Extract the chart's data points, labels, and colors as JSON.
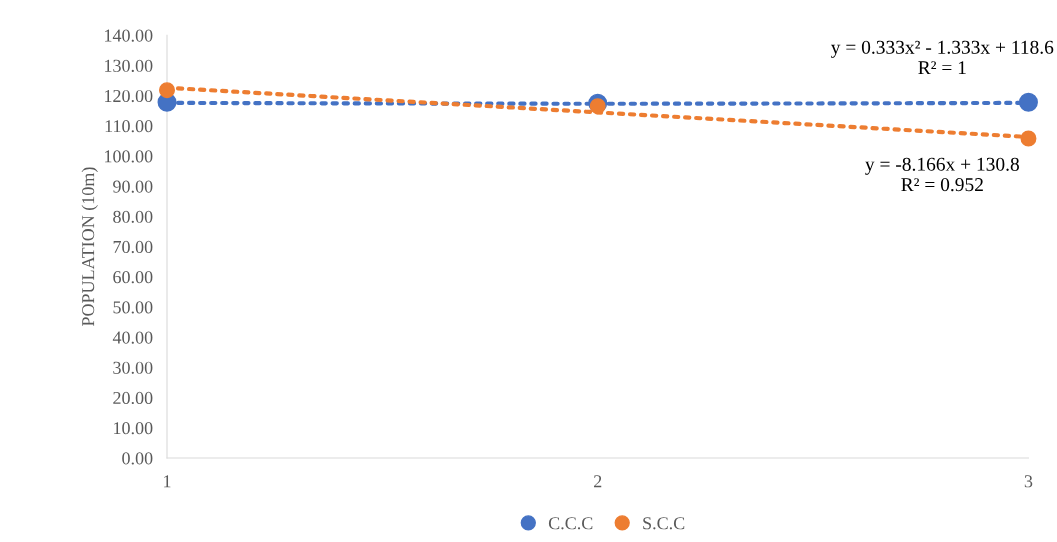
{
  "chart_data": {
    "type": "scatter",
    "ylabel": "POPULATION (10m)",
    "xlim": [
      1,
      3
    ],
    "xticks": [
      1,
      2,
      3
    ],
    "ylim": [
      0,
      140
    ],
    "yticks": [
      {
        "value": 0,
        "label": "0.00"
      },
      {
        "value": 10,
        "label": "10.00"
      },
      {
        "value": 20,
        "label": "20.00"
      },
      {
        "value": 30,
        "label": "30.00"
      },
      {
        "value": 40,
        "label": "40.00"
      },
      {
        "value": 50,
        "label": "50.00"
      },
      {
        "value": 60,
        "label": "60.00"
      },
      {
        "value": 70,
        "label": "70.00"
      },
      {
        "value": 80,
        "label": "80.00"
      },
      {
        "value": 90,
        "label": "90.00"
      },
      {
        "value": 100,
        "label": "100.00"
      },
      {
        "value": 110,
        "label": "110.00"
      },
      {
        "value": 120,
        "label": "120.00"
      },
      {
        "value": 130,
        "label": "130.00"
      },
      {
        "value": 140,
        "label": "140.00"
      }
    ],
    "series": [
      {
        "name": "C.C.C",
        "color": "#4472c4",
        "x": [
          1,
          2,
          3
        ],
        "values": [
          117.8,
          117.5,
          117.8
        ],
        "marker": "circle"
      },
      {
        "name": "S.C.C",
        "color": "#ed7d31",
        "x": [
          1,
          2,
          3
        ],
        "values": [
          121.8,
          116.5,
          105.8
        ],
        "marker": "circle"
      },
      {
        "type": "line",
        "color": "#4472c4",
        "x": [
          1,
          1.5,
          2,
          2.5,
          3
        ],
        "values": [
          117.6,
          117.4,
          117.3,
          117.4,
          117.6
        ],
        "line_style": "dotted",
        "marker": "none"
      },
      {
        "type": "line",
        "color": "#ed7d31",
        "x": [
          1,
          3
        ],
        "values": [
          122.6,
          106.3
        ],
        "line_style": "dotted",
        "marker": "none"
      }
    ],
    "annotations": [
      {
        "text": "y = 0.333x² - 1.333x + 118.6\nR² = 1",
        "x": 2.8,
        "y": 117.5
      },
      {
        "text": "y = -8.166x + 130.8\nR² = 0.952",
        "x": 2.8,
        "y": 107.9
      }
    ],
    "grid": false,
    "legend": "bottom"
  }
}
